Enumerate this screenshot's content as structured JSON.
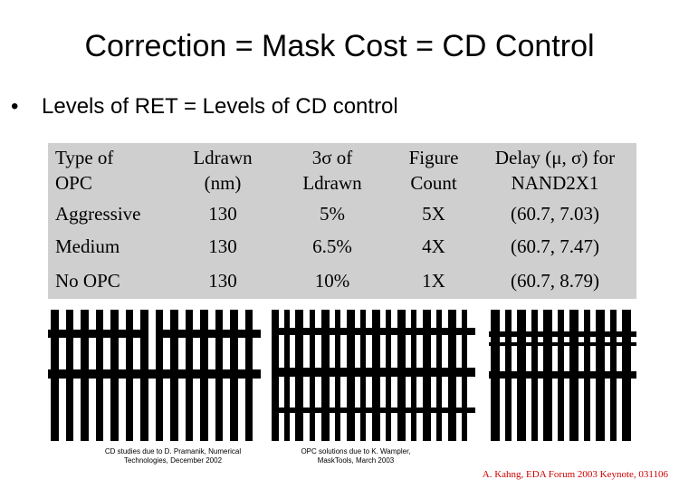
{
  "title": "Correction = Mask Cost = CD Control",
  "bullet": {
    "symbol": "•",
    "text": "Levels of RET = Levels of CD control"
  },
  "table": {
    "headers": [
      {
        "line1": "Type of",
        "line2": "OPC"
      },
      {
        "line1": "Ldrawn",
        "line2": "(nm)"
      },
      {
        "line1": "3σ of",
        "line2": "Ldrawn"
      },
      {
        "line1": "Figure",
        "line2": "Count"
      },
      {
        "line1": "Delay (μ, σ) for",
        "line2": "NAND2X1"
      }
    ],
    "rows": [
      [
        "Aggressive",
        "130",
        "5%",
        "5X",
        "(60.7, 7.03)"
      ],
      [
        "Medium",
        "130",
        "6.5%",
        "4X",
        "(60.7, 7.47)"
      ],
      [
        "No OPC",
        "130",
        "10%",
        "1X",
        "(60.7, 8.79)"
      ]
    ]
  },
  "captions": {
    "left_line1": "CD studies due to  D. Pramanik, Numerical",
    "left_line2": "Technologies, December 2002",
    "right_line1": "OPC solutions due to K. Wampler,",
    "right_line2": "MaskTools,  March 2003"
  },
  "credit": "A. Kahng, EDA Forum 2003 Keynote, 031106",
  "colors": {
    "table_background": "#cfcfcf",
    "credit": "#cc0000"
  }
}
